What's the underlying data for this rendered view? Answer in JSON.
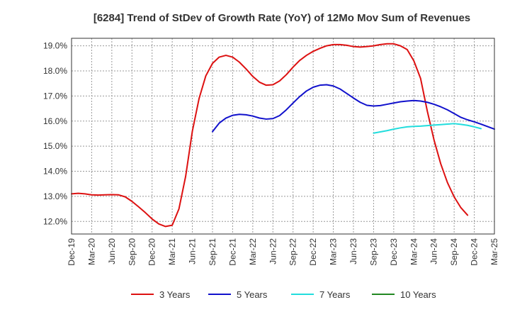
{
  "chart_data": {
    "type": "line",
    "title": "[6284]  Trend of StDev of Growth Rate (YoY) of 12Mo Mov Sum of Revenues",
    "xlabel": "",
    "ylabel": "",
    "ylim": [
      11.5,
      19.3
    ],
    "yticks": [
      12.0,
      13.0,
      14.0,
      15.0,
      16.0,
      17.0,
      18.0,
      19.0
    ],
    "ytick_labels": [
      "12.0%",
      "13.0%",
      "14.0%",
      "15.0%",
      "16.0%",
      "17.0%",
      "18.0%",
      "19.0%"
    ],
    "x_labels": [
      "Dec-19",
      "Mar-20",
      "Jun-20",
      "Sep-20",
      "Dec-20",
      "Mar-21",
      "Jun-21",
      "Sep-21",
      "Dec-21",
      "Mar-22",
      "Jun-22",
      "Sep-22",
      "Dec-22",
      "Mar-23",
      "Jun-23",
      "Sep-23",
      "Dec-23",
      "Mar-24",
      "Jun-24",
      "Sep-24",
      "Dec-24",
      "Mar-25"
    ],
    "x_start": "Dec-19",
    "months_total": 63,
    "grid": true,
    "legend_position": "bottom",
    "series": [
      {
        "name": "3 Years",
        "color": "#dd1111",
        "start_month": 0,
        "values": [
          13.1,
          13.12,
          13.1,
          13.06,
          13.05,
          13.06,
          13.07,
          13.06,
          12.98,
          12.8,
          12.58,
          12.35,
          12.1,
          11.9,
          11.8,
          11.85,
          12.5,
          13.8,
          15.6,
          16.9,
          17.8,
          18.3,
          18.55,
          18.62,
          18.55,
          18.35,
          18.08,
          17.78,
          17.55,
          17.43,
          17.45,
          17.6,
          17.85,
          18.15,
          18.42,
          18.62,
          18.78,
          18.9,
          19.0,
          19.05,
          19.05,
          19.02,
          18.97,
          18.95,
          18.97,
          19.0,
          19.05,
          19.08,
          19.08,
          19.0,
          18.85,
          18.4,
          17.7,
          16.4,
          15.25,
          14.3,
          13.55,
          12.98,
          12.55,
          12.25
        ]
      },
      {
        "name": "5 Years",
        "color": "#1111cc",
        "start_month": 21,
        "values": [
          15.58,
          15.92,
          16.12,
          16.23,
          16.27,
          16.25,
          16.2,
          16.12,
          16.08,
          16.1,
          16.22,
          16.45,
          16.72,
          16.98,
          17.2,
          17.35,
          17.43,
          17.45,
          17.4,
          17.28,
          17.1,
          16.92,
          16.75,
          16.63,
          16.6,
          16.62,
          16.67,
          16.72,
          16.77,
          16.8,
          16.82,
          16.8,
          16.75,
          16.67,
          16.57,
          16.45,
          16.3,
          16.15,
          16.05,
          15.97,
          15.88,
          15.78,
          15.68
        ]
      },
      {
        "name": "7 Years",
        "color": "#22dddd",
        "start_month": 45,
        "values": [
          15.52,
          15.57,
          15.62,
          15.68,
          15.73,
          15.77,
          15.79,
          15.8,
          15.82,
          15.84,
          15.86,
          15.88,
          15.9,
          15.87,
          15.83,
          15.77,
          15.7
        ]
      },
      {
        "name": "10 Years",
        "color": "#228822",
        "start_month": 0,
        "values": []
      }
    ]
  }
}
